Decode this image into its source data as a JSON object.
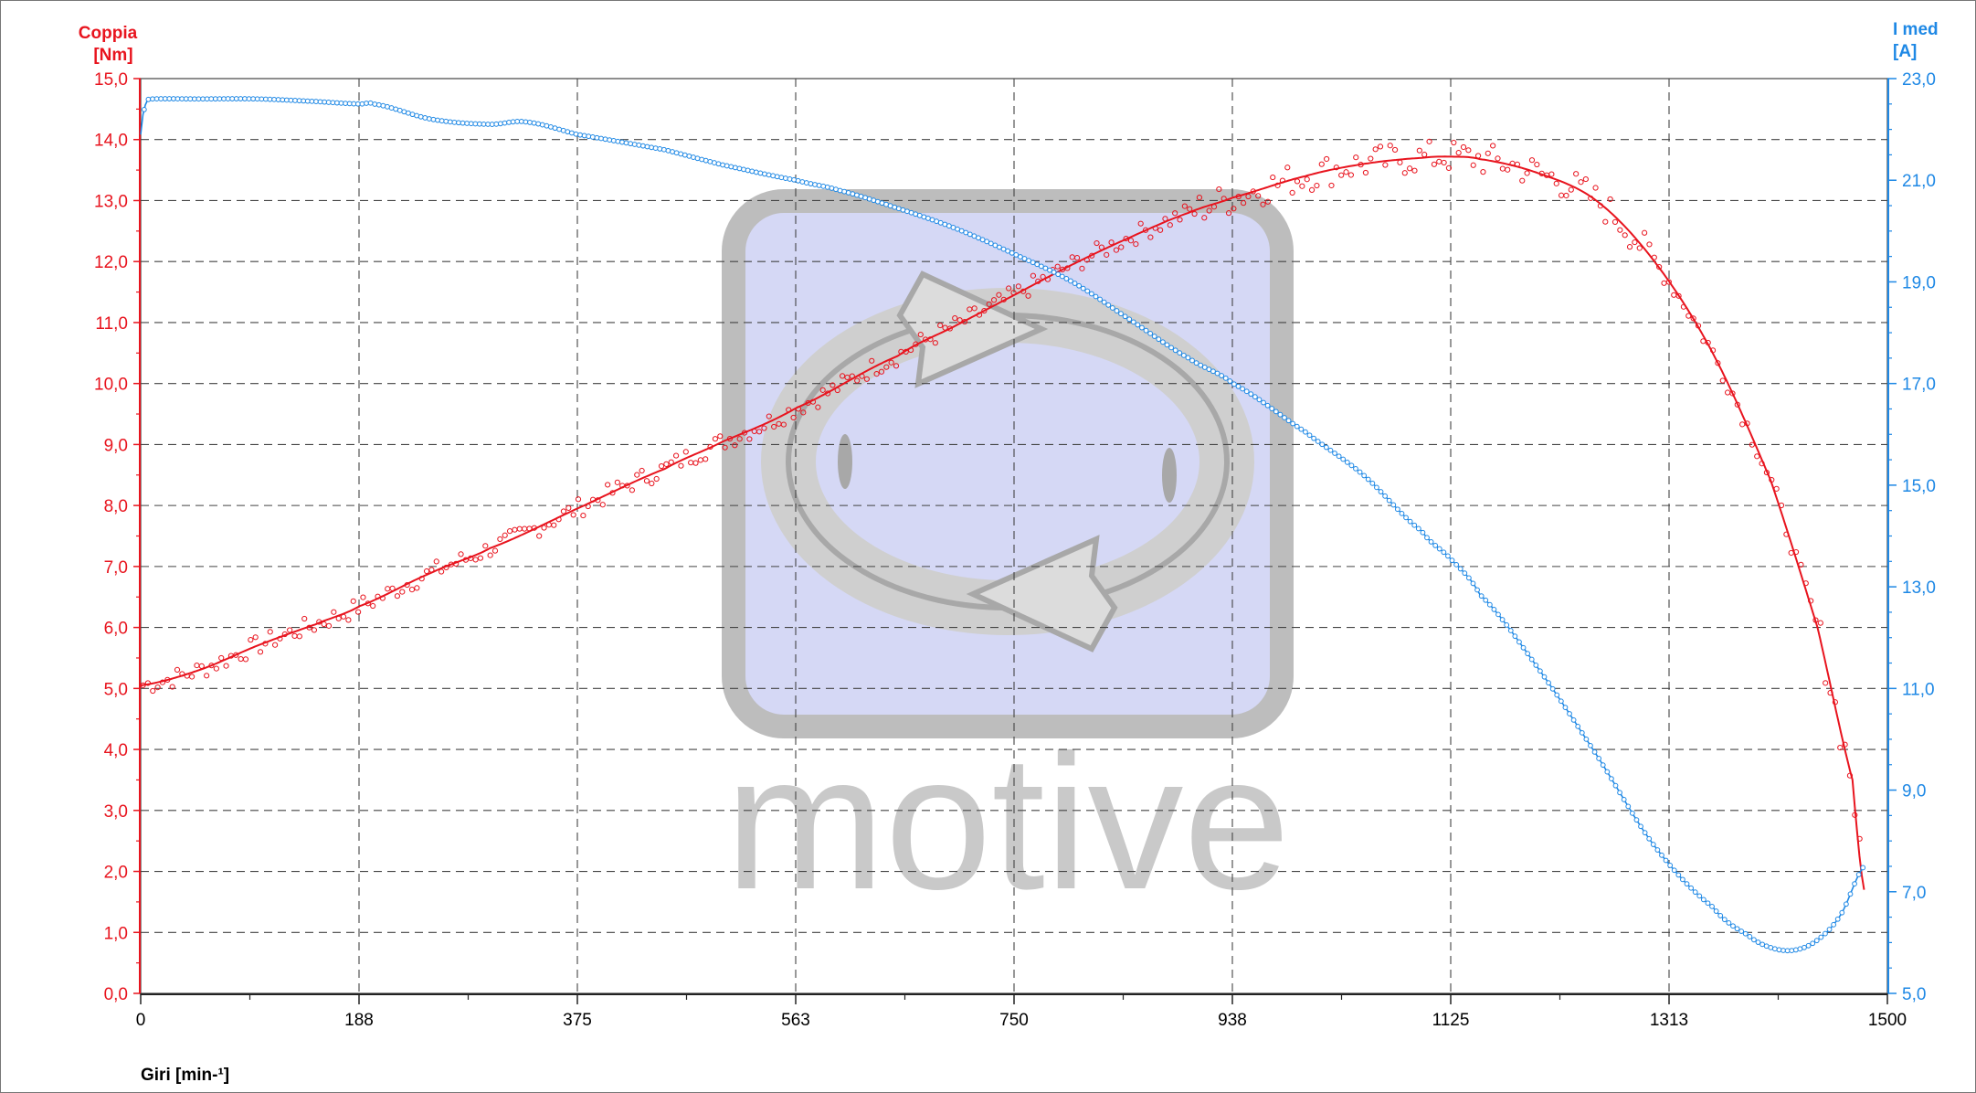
{
  "colors": {
    "torque": "#e8141e",
    "current": "#1e88e5",
    "grid": "#444444",
    "watermark_gray": "#bdbdbd",
    "watermark_fill": "#d5d8f5"
  },
  "watermark": {
    "icon": "cycle-arrows-logo-icon",
    "text": "motive"
  },
  "chart_data": {
    "type": "line",
    "x_axis": {
      "label": "Giri [min-¹]",
      "ticks": [
        "0",
        "188",
        "375",
        "563",
        "750",
        "938",
        "1125",
        "1313",
        "1500"
      ],
      "range": [
        0,
        1500
      ]
    },
    "y_left": {
      "title": [
        "Coppia",
        "[Nm]"
      ],
      "range": [
        0,
        15
      ],
      "ticks": [
        "0,0",
        "1,0",
        "2,0",
        "3,0",
        "4,0",
        "5,0",
        "6,0",
        "7,0",
        "8,0",
        "9,0",
        "10,0",
        "11,0",
        "12,0",
        "13,0",
        "14,0",
        "15,0"
      ]
    },
    "y_right": {
      "title": [
        "I med",
        "[A]"
      ],
      "range": [
        5,
        23
      ],
      "ticks": [
        "5,0",
        "7,0",
        "9,0",
        "11,0",
        "13,0",
        "15,0",
        "17,0",
        "19,0",
        "21,0",
        "23,0"
      ]
    },
    "grid": true,
    "series": [
      {
        "axis": "left",
        "color": "#e8141e",
        "style": "fit line with scatter points",
        "x": [
          0,
          50,
          100,
          150,
          188,
          250,
          300,
          375,
          450,
          500,
          563,
          650,
          700,
          750,
          800,
          850,
          900,
          938,
          1000,
          1050,
          1100,
          1125,
          1150,
          1200,
          1250,
          1300,
          1350,
          1400,
          1440,
          1470,
          1480
        ],
        "values": [
          5.05,
          5.3,
          5.7,
          6.05,
          6.35,
          6.9,
          7.3,
          7.95,
          8.6,
          9.05,
          9.6,
          10.45,
          10.95,
          11.45,
          11.95,
          12.4,
          12.8,
          13.05,
          13.4,
          13.6,
          13.7,
          13.72,
          13.68,
          13.45,
          13.0,
          12.0,
          10.5,
          8.4,
          6.0,
          3.5,
          1.7
        ]
      },
      {
        "axis": "right",
        "color": "#1e88e5",
        "style": "line with circle markers",
        "x": [
          0,
          1,
          5,
          10,
          50,
          100,
          150,
          188,
          200,
          250,
          300,
          330,
          375,
          450,
          500,
          563,
          600,
          650,
          700,
          750,
          800,
          850,
          900,
          938,
          1000,
          1050,
          1100,
          1125,
          1150,
          1200,
          1250,
          1300,
          1350,
          1380,
          1400,
          1420,
          1440,
          1460,
          1480
        ],
        "values": [
          21.9,
          22.2,
          22.55,
          22.6,
          22.6,
          22.6,
          22.55,
          22.5,
          22.5,
          22.2,
          22.1,
          22.15,
          21.9,
          21.6,
          21.3,
          21.0,
          20.8,
          20.45,
          20.05,
          19.55,
          19.0,
          18.25,
          17.5,
          17.0,
          16.05,
          15.2,
          14.1,
          13.55,
          12.85,
          11.4,
          9.7,
          7.9,
          6.7,
          6.15,
          5.9,
          5.85,
          6.05,
          6.55,
          7.5
        ]
      }
    ]
  }
}
